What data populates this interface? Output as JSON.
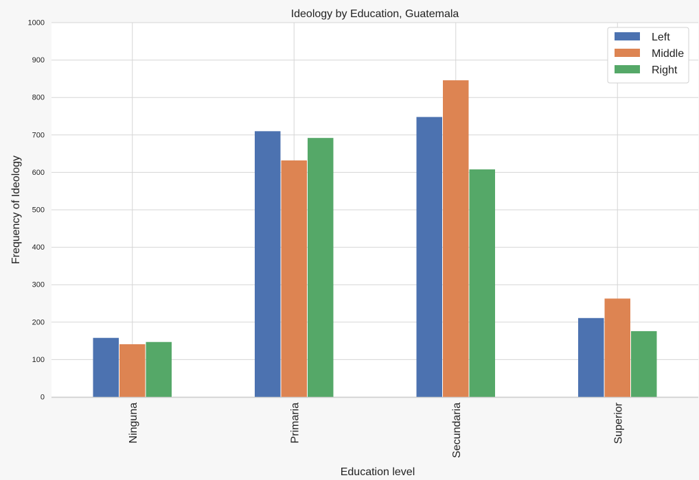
{
  "chart_data": {
    "type": "bar",
    "title": "Ideology by Education, Guatemala",
    "xlabel": "Education level",
    "ylabel": "Frequency of Ideology",
    "categories": [
      "Ninguna",
      "Primaria",
      "Secundaria",
      "Superior"
    ],
    "series": [
      {
        "name": "Left",
        "color": "#4c72b0",
        "values": [
          158,
          710,
          748,
          211
        ]
      },
      {
        "name": "Middle",
        "color": "#dd8452",
        "values": [
          141,
          632,
          846,
          263
        ]
      },
      {
        "name": "Right",
        "color": "#55a868",
        "values": [
          147,
          692,
          608,
          176
        ]
      }
    ],
    "ylim": [
      0,
      1000
    ],
    "yticks": [
      0,
      100,
      200,
      300,
      400,
      500,
      600,
      700,
      800,
      900,
      1000
    ],
    "grid": true,
    "legend_position": "top-right"
  }
}
